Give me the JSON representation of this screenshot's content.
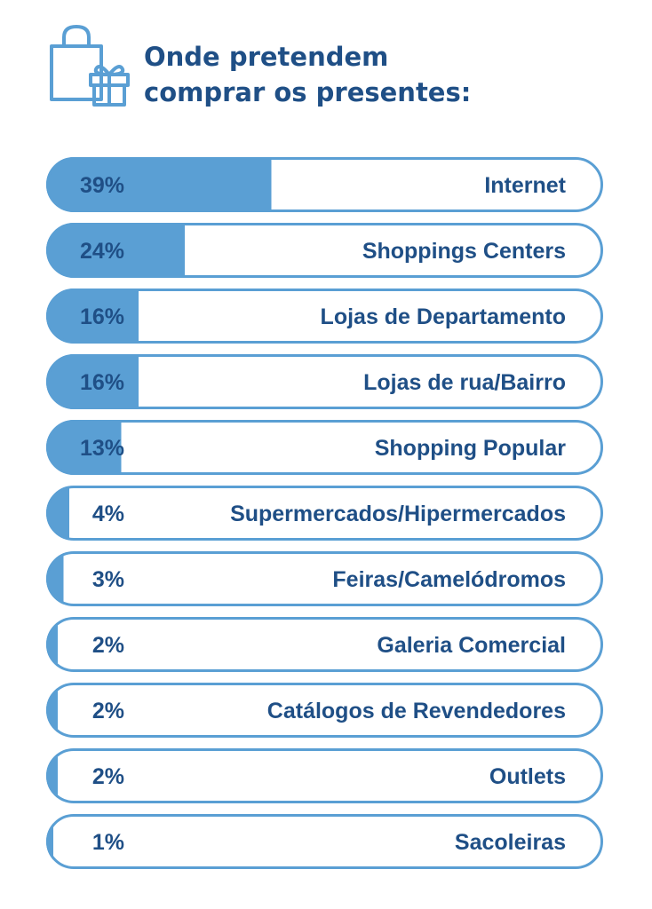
{
  "title": "Onde pretendem\ncomprar os presentes:",
  "icon": "shopping-bag-gift-icon",
  "colors": {
    "accent": "#5a9fd4",
    "dark": "#1f4f86",
    "border": "#5a9fd4"
  },
  "chart_data": {
    "type": "bar",
    "orientation": "horizontal",
    "title": "Onde pretendem comprar os presentes:",
    "categories": [
      "Internet",
      "Shoppings Centers",
      "Lojas de Departamento",
      "Lojas de rua/Bairro",
      "Shopping Popular",
      "Supermercados/Hipermercados",
      "Feiras/Camelódromos",
      "Galeria Comercial",
      "Catálogos de Revendedores",
      "Outlets",
      "Sacoleiras"
    ],
    "values": [
      39,
      24,
      16,
      16,
      13,
      4,
      3,
      2,
      2,
      2,
      1
    ],
    "value_labels": [
      "39%",
      "24%",
      "16%",
      "16%",
      "13%",
      "4%",
      "3%",
      "2%",
      "2%",
      "2%",
      "1%"
    ],
    "xlim": [
      0,
      100
    ],
    "unit": "%"
  }
}
